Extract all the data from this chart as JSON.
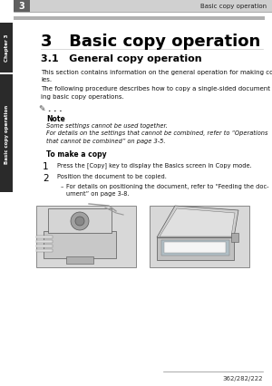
{
  "page_bg": "#ffffff",
  "header_chapter_num": "3",
  "header_title": "Basic copy operation",
  "chapter_num": "3",
  "chapter_title": "Basic copy operation",
  "section_num": "3.1",
  "section_title": "General copy operation",
  "body_text1": "This section contains information on the general operation for making cop-\nies.",
  "body_text2": "The following procedure describes how to copy a single-sided document us-\ning basic copy operations.",
  "note_dots": "•••",
  "note_label": "Note",
  "note_text1": "Some settings cannot be used together.",
  "note_text2": "For details on the settings that cannot be combined, refer to “Operations\nthat cannot be combined” on page 3-5.",
  "procedure_title": "To make a copy",
  "step1_num": "1",
  "step1_text": "Press the [Copy] key to display the Basics screen in Copy mode.",
  "step2_num": "2",
  "step2_text": "Position the document to be copied.",
  "step2_sub": "For details on positioning the document, refer to “Feeding the doc-\nument” on page 3-8.",
  "footer_text": "362/282/222",
  "sidebar_text_top": "Chapter 3",
  "sidebar_text_bottom": "Basic copy operation"
}
